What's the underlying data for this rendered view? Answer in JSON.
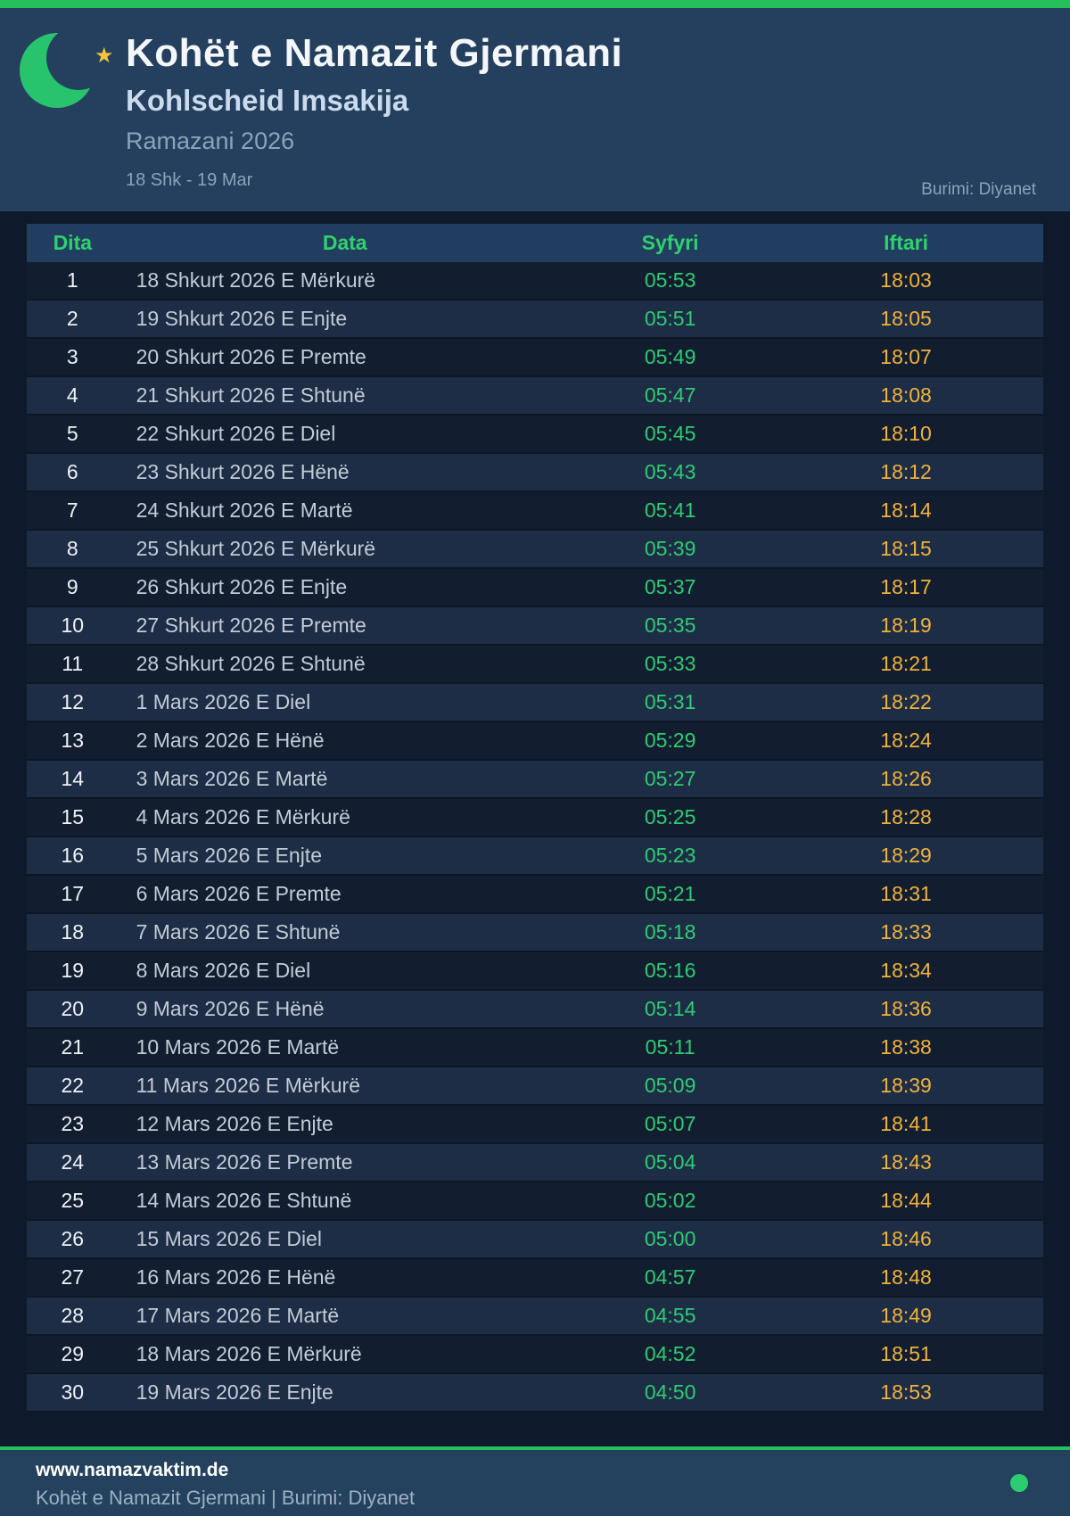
{
  "header": {
    "title": "Kohët e Namazit Gjermani",
    "subtitle": "Kohlscheid Imsakija",
    "season": "Ramazani 2026",
    "date_range": "18 Shk - 19 Mar",
    "source": "Burimi: Diyanet",
    "moon_icon": "crescent-moon-icon",
    "star_icon": "star-icon",
    "star_glyph": "★"
  },
  "table": {
    "columns": [
      "Dita",
      "Data",
      "Syfyri",
      "Iftari"
    ],
    "rows": [
      {
        "day": "1",
        "date": "18 Shkurt 2026 E Mërkurë",
        "syfyri": "05:53",
        "iftari": "18:03"
      },
      {
        "day": "2",
        "date": "19 Shkurt 2026 E Enjte",
        "syfyri": "05:51",
        "iftari": "18:05"
      },
      {
        "day": "3",
        "date": "20 Shkurt 2026 E Premte",
        "syfyri": "05:49",
        "iftari": "18:07"
      },
      {
        "day": "4",
        "date": "21 Shkurt 2026 E Shtunë",
        "syfyri": "05:47",
        "iftari": "18:08"
      },
      {
        "day": "5",
        "date": "22 Shkurt 2026 E Diel",
        "syfyri": "05:45",
        "iftari": "18:10"
      },
      {
        "day": "6",
        "date": "23 Shkurt 2026 E Hënë",
        "syfyri": "05:43",
        "iftari": "18:12"
      },
      {
        "day": "7",
        "date": "24 Shkurt 2026 E Martë",
        "syfyri": "05:41",
        "iftari": "18:14"
      },
      {
        "day": "8",
        "date": "25 Shkurt 2026 E Mërkurë",
        "syfyri": "05:39",
        "iftari": "18:15"
      },
      {
        "day": "9",
        "date": "26 Shkurt 2026 E Enjte",
        "syfyri": "05:37",
        "iftari": "18:17"
      },
      {
        "day": "10",
        "date": "27 Shkurt 2026 E Premte",
        "syfyri": "05:35",
        "iftari": "18:19"
      },
      {
        "day": "11",
        "date": "28 Shkurt 2026 E Shtunë",
        "syfyri": "05:33",
        "iftari": "18:21"
      },
      {
        "day": "12",
        "date": "1 Mars 2026 E Diel",
        "syfyri": "05:31",
        "iftari": "18:22"
      },
      {
        "day": "13",
        "date": "2 Mars 2026 E Hënë",
        "syfyri": "05:29",
        "iftari": "18:24"
      },
      {
        "day": "14",
        "date": "3 Mars 2026 E Martë",
        "syfyri": "05:27",
        "iftari": "18:26"
      },
      {
        "day": "15",
        "date": "4 Mars 2026 E Mërkurë",
        "syfyri": "05:25",
        "iftari": "18:28"
      },
      {
        "day": "16",
        "date": "5 Mars 2026 E Enjte",
        "syfyri": "05:23",
        "iftari": "18:29"
      },
      {
        "day": "17",
        "date": "6 Mars 2026 E Premte",
        "syfyri": "05:21",
        "iftari": "18:31"
      },
      {
        "day": "18",
        "date": "7 Mars 2026 E Shtunë",
        "syfyri": "05:18",
        "iftari": "18:33"
      },
      {
        "day": "19",
        "date": "8 Mars 2026 E Diel",
        "syfyri": "05:16",
        "iftari": "18:34"
      },
      {
        "day": "20",
        "date": "9 Mars 2026 E Hënë",
        "syfyri": "05:14",
        "iftari": "18:36"
      },
      {
        "day": "21",
        "date": "10 Mars 2026 E Martë",
        "syfyri": "05:11",
        "iftari": "18:38"
      },
      {
        "day": "22",
        "date": "11 Mars 2026 E Mërkurë",
        "syfyri": "05:09",
        "iftari": "18:39"
      },
      {
        "day": "23",
        "date": "12 Mars 2026 E Enjte",
        "syfyri": "05:07",
        "iftari": "18:41"
      },
      {
        "day": "24",
        "date": "13 Mars 2026 E Premte",
        "syfyri": "05:04",
        "iftari": "18:43"
      },
      {
        "day": "25",
        "date": "14 Mars 2026 E Shtunë",
        "syfyri": "05:02",
        "iftari": "18:44"
      },
      {
        "day": "26",
        "date": "15 Mars 2026 E Diel",
        "syfyri": "05:00",
        "iftari": "18:46"
      },
      {
        "day": "27",
        "date": "16 Mars 2026 E Hënë",
        "syfyri": "04:57",
        "iftari": "18:48"
      },
      {
        "day": "28",
        "date": "17 Mars 2026 E Martë",
        "syfyri": "04:55",
        "iftari": "18:49"
      },
      {
        "day": "29",
        "date": "18 Mars 2026 E Mërkurë",
        "syfyri": "04:52",
        "iftari": "18:51"
      },
      {
        "day": "30",
        "date": "19 Mars 2026 E Enjte",
        "syfyri": "04:50",
        "iftari": "18:53"
      }
    ]
  },
  "footer": {
    "website": "www.namazvaktim.de",
    "tagline": "Kohët e Namazit Gjermani | Burimi: Diyanet",
    "status_dot_icon": "green-dot-icon"
  },
  "colors": {
    "accent_green_bar": "#25c05c",
    "time_green": "#2ecc71",
    "time_amber": "#f0b23a",
    "header_navy": "#24405e",
    "page_dark": "#0e1a2c",
    "row_dark": "#121e30",
    "row_light": "#1e2d46",
    "table_header_navy": "#213e60",
    "table_header_text_green": "#2fd06e",
    "footer_navy": "#24425e",
    "star_gold": "#f5c33b",
    "moon_green": "#27c46d"
  }
}
